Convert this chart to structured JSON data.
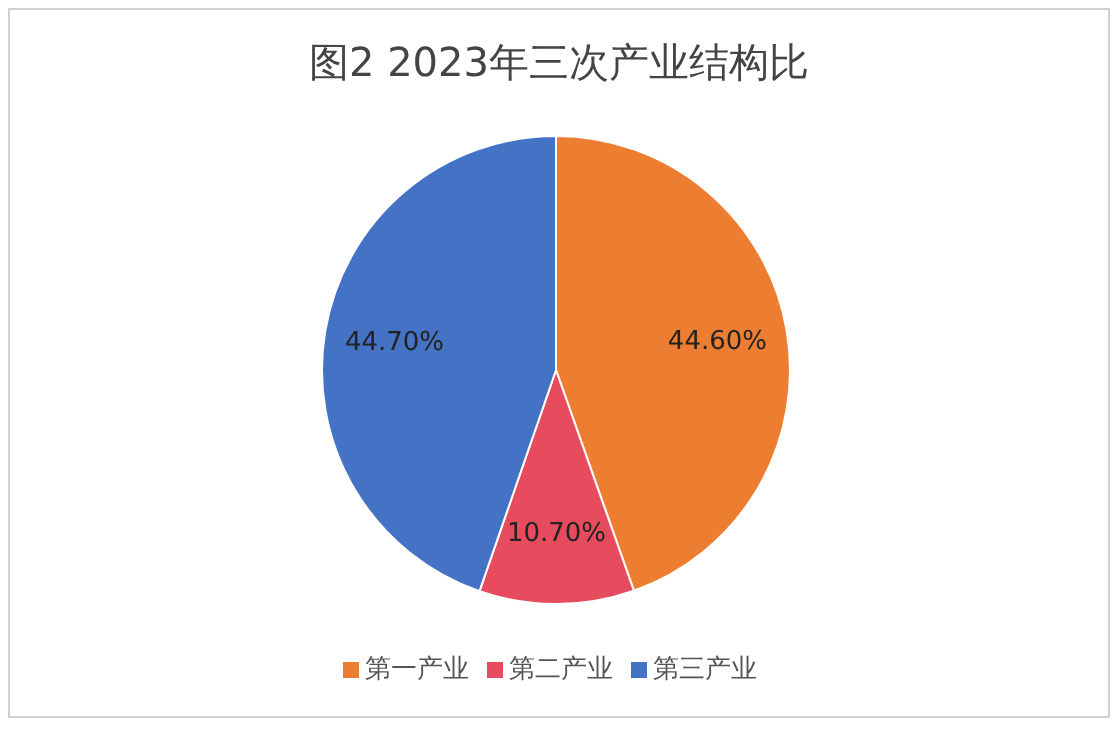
{
  "chart_data": {
    "type": "pie",
    "title": "图2  2023年三次产业结构比",
    "categories": [
      "第一产业",
      "第二产业",
      "第三产业"
    ],
    "values": [
      44.6,
      10.7,
      44.7
    ],
    "value_labels": [
      "44.60%",
      "10.70%",
      "44.70%"
    ],
    "colors": [
      "#ed7d31",
      "#e64c5e",
      "#4472c4"
    ],
    "legend": "bottom"
  }
}
